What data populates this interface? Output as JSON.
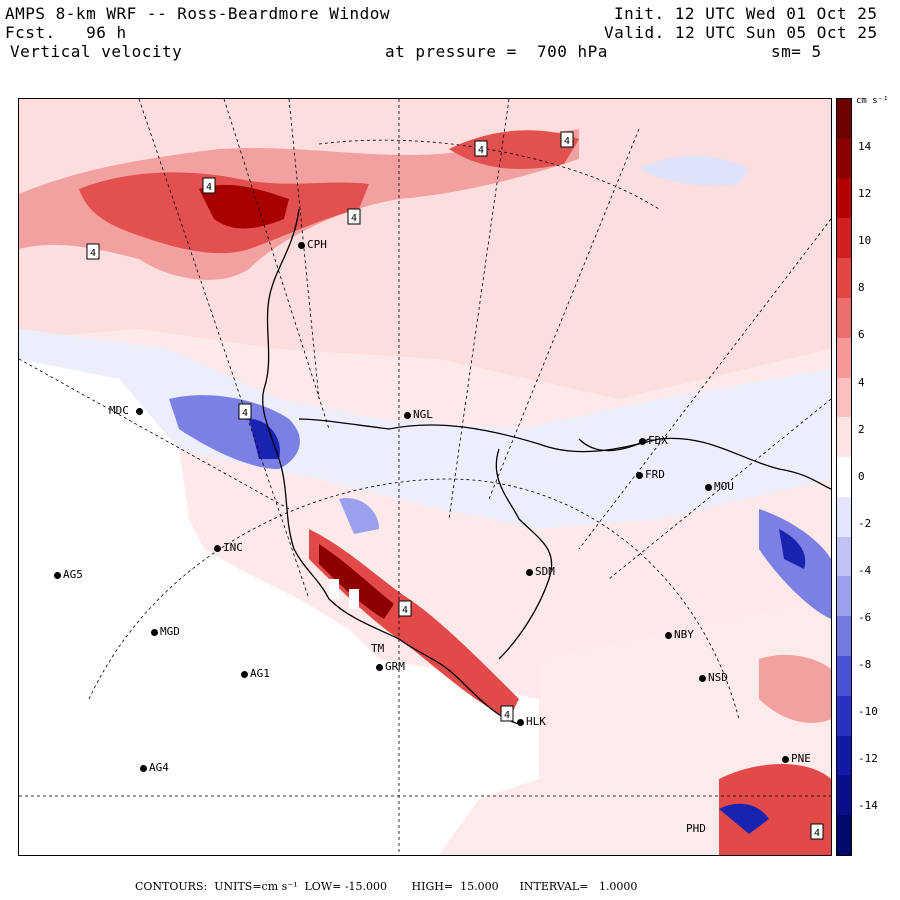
{
  "header": {
    "line1_left": "AMPS 8-km WRF -- Ross-Beardmore Window",
    "line2_left": "Fcst.   96 h",
    "line3_left": "Vertical velocity",
    "line1_right": "Init. 12 UTC Wed 01 Oct 25",
    "line2_right": "Valid. 12 UTC Sun 05 Oct 25",
    "pressure": "at pressure =  700 hPa",
    "smoothing": "sm= 5"
  },
  "colorbar": {
    "unit": "cm s⁻¹",
    "labels": [
      "14",
      "12",
      "10",
      "8",
      "6",
      "4",
      "2",
      "0",
      "-2",
      "-4",
      "-6",
      "-8",
      "-10",
      "-12",
      "-14"
    ],
    "colors": [
      "#6e0000",
      "#8c0000",
      "#b40000",
      "#d21e1e",
      "#e44646",
      "#ee6e6e",
      "#f59898",
      "#fac0c0",
      "#fde4e4",
      "#ffffff",
      "#e4e4fd",
      "#c0c2f6",
      "#9ba0ee",
      "#7478e2",
      "#4c52d6",
      "#2a30c4",
      "#1218a8",
      "#0a0e8a",
      "#04086a"
    ]
  },
  "stations": [
    {
      "id": "MDC",
      "label": "MDC"
    },
    {
      "id": "NGL",
      "label": "NGL"
    },
    {
      "id": "CPH",
      "label": "CPH"
    },
    {
      "id": "FDX",
      "label": "FDX"
    },
    {
      "id": "FRD",
      "label": "FRD"
    },
    {
      "id": "MOU",
      "label": "MOU"
    },
    {
      "id": "SDM",
      "label": "SDM"
    },
    {
      "id": "AG5",
      "label": "AG5"
    },
    {
      "id": "MGD",
      "label": "MGD"
    },
    {
      "id": "AG1",
      "label": "AG1"
    },
    {
      "id": "AG4",
      "label": "AG4"
    },
    {
      "id": "GRM",
      "label": "GRM"
    },
    {
      "id": "NBY",
      "label": "NBY"
    },
    {
      "id": "NSD",
      "label": "NSD"
    },
    {
      "id": "HLK",
      "label": "HLK"
    },
    {
      "id": "PNE",
      "label": "PNE"
    },
    {
      "id": "PHD",
      "label": "PHD"
    },
    {
      "id": "INC",
      "label": "INC"
    },
    {
      "id": "TM",
      "label": "TM"
    }
  ],
  "contour_labels": [
    "4",
    "4",
    "4",
    "4",
    "4",
    "4",
    "4",
    "4",
    "4"
  ],
  "footer": {
    "contours": "CONTOURS:",
    "units_text": "UNITS=cm s⁻¹",
    "low": "LOW= -15.000",
    "high": "HIGH=  15.000",
    "interval": "INTERVAL=   1.0000"
  }
}
